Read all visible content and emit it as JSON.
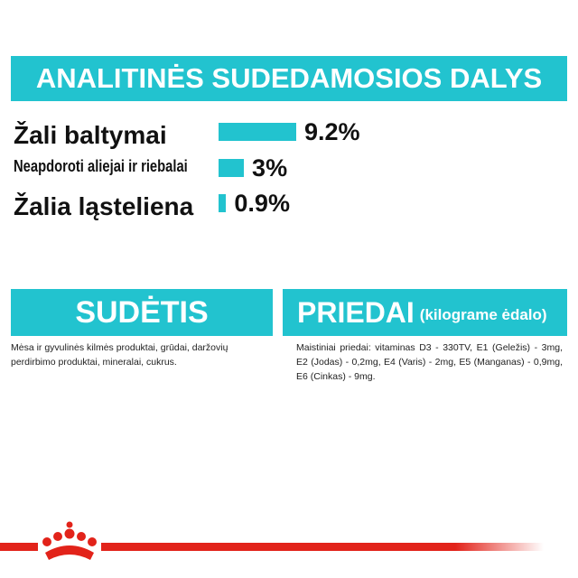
{
  "header": {
    "title": "ANALITINĖS SUDEDAMOSIOS DALYS"
  },
  "analysis": {
    "rows": [
      {
        "label": "Žali baltymai",
        "value": 9.2,
        "value_label": "9.2%"
      },
      {
        "label": "Neapdoroti aliejai ir riebalai",
        "value": 3,
        "value_label": "3%"
      },
      {
        "label": "Žalia ląsteliena",
        "value": 0.9,
        "value_label": "0.9%"
      }
    ],
    "color": "#22c3cf"
  },
  "composition": {
    "title": "SUDĖTIS",
    "text": "Mėsa ir gyvulinės kilmės produktai, grūdai, daržovių perdirbimo produktai, mineralai, cukrus."
  },
  "additives": {
    "title": "PRIEDAI",
    "subtitle": "(kilograme ėdalo)",
    "text": "Maistiniai priedai: vitaminas D3 - 330TV, E1 (Geležis) - 3mg, E2 (Jodas) - 0,2mg, E4 (Varis) - 2mg, E5 (Manganas) - 0,9mg, E6 (Cinkas) - 9mg."
  }
}
